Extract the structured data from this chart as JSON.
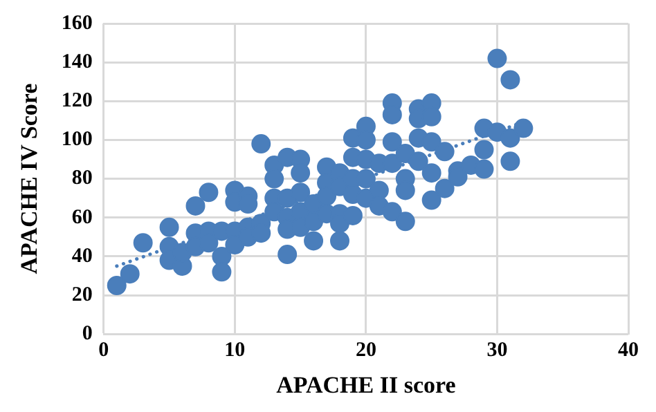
{
  "chart_data": {
    "type": "scatter",
    "xlabel": "APACHE II score",
    "ylabel": "APACHE IV Score",
    "xlim": [
      0,
      40
    ],
    "xticks": [
      0,
      10,
      20,
      30,
      40
    ],
    "ylim": [
      0,
      160
    ],
    "yticks": [
      0,
      20,
      40,
      60,
      80,
      100,
      120,
      140,
      160
    ],
    "grid": true,
    "legend": false,
    "marker": "circle",
    "series": [
      {
        "color": "#4a7ebb",
        "x": [
          1,
          2,
          3,
          5,
          5,
          5,
          6,
          6,
          7,
          7,
          7,
          8,
          8,
          8,
          9,
          9,
          9,
          10,
          10,
          10,
          10,
          11,
          11,
          11,
          11,
          12,
          12,
          12,
          13,
          13,
          13,
          13,
          14,
          14,
          14,
          14,
          14,
          15,
          15,
          15,
          15,
          15,
          16,
          16,
          16,
          17,
          17,
          17,
          17,
          18,
          18,
          18,
          18,
          18,
          19,
          19,
          19,
          19,
          19,
          20,
          20,
          20,
          20,
          20,
          21,
          21,
          21,
          22,
          22,
          22,
          22,
          22,
          23,
          23,
          23,
          23,
          24,
          24,
          24,
          24,
          25,
          25,
          25,
          25,
          25,
          26,
          26,
          27,
          27,
          28,
          29,
          29,
          29,
          30,
          30,
          31,
          31,
          31,
          32
        ],
        "values": [
          25,
          31,
          47,
          55,
          45,
          38,
          35,
          42,
          66,
          52,
          45,
          73,
          53,
          47,
          53,
          40,
          32,
          74,
          68,
          53,
          46,
          71,
          67,
          55,
          50,
          98,
          57,
          52,
          87,
          80,
          70,
          63,
          91,
          70,
          60,
          54,
          41,
          90,
          83,
          73,
          63,
          55,
          67,
          58,
          48,
          86,
          78,
          71,
          62,
          83,
          76,
          62,
          57,
          48,
          101,
          91,
          80,
          72,
          61,
          107,
          100,
          90,
          80,
          70,
          88,
          74,
          66,
          119,
          113,
          99,
          88,
          63,
          93,
          80,
          74,
          58,
          116,
          111,
          101,
          89,
          119,
          112,
          99,
          83,
          69,
          94,
          75,
          84,
          81,
          87,
          106,
          95,
          85,
          142,
          104,
          131,
          101,
          89,
          106
        ]
      },
      {
        "type": "line",
        "color": "#4a7ebb",
        "line_style": "dotted",
        "marker": "none",
        "x": [
          1,
          31.5
        ],
        "values": [
          35,
          108
        ]
      }
    ]
  }
}
